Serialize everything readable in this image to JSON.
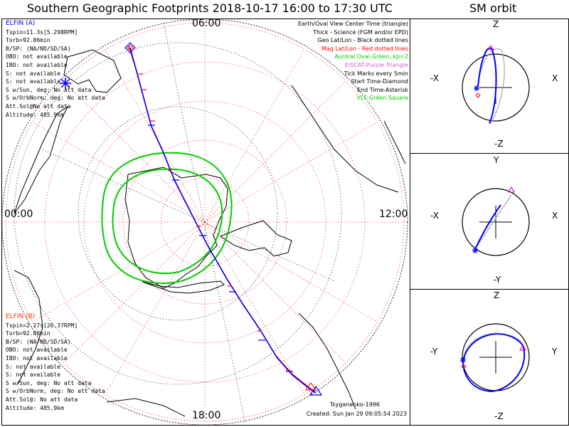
{
  "title": "Southern Geographic Footprints 2018-10-17 16:00 to 17:30 UTC",
  "side_title": "SM orbit",
  "clock_labels": {
    "top": "06:00",
    "left": "00:00",
    "right": "12:00",
    "bottom": "18:00"
  },
  "elfin_a": {
    "name": "ELFIN (A)",
    "color": "#0000ff",
    "lines": [
      "Tspin=11.3s[5.298RPM]",
      "Torb=92.86min",
      "B/SP: (NA/ND/SD/SA)",
      "OBO: not available",
      "IBO: not available",
      "S: not available",
      "S: not available",
      "S w/Sun, deg: No att data",
      "S w/OrbNorm, deg: No att data",
      "Att.Sol@No att data",
      "Altitude: 485.9km"
    ]
  },
  "elfin_b": {
    "name": "ELFIN (B)",
    "color": "#ff3300",
    "lines": [
      "Tspin=2.27s[26.37RPM]",
      "Torb=92.86min",
      "B/SP: (NA/ND/SD/SA)",
      "OBO: not available",
      "IBO: not available",
      "S: not available",
      "S: not available",
      "S w/Sun, deg: No att data",
      "S w/OrbNorm, deg: No att data",
      "Att.Sol@: No att data",
      "Altitude: 485.9km"
    ]
  },
  "legend": [
    {
      "text": "Earth/Oval View Center Time (triangle)",
      "color": "#000000"
    },
    {
      "text": "Thick - Science (FGM and/or EPD)",
      "color": "#000000"
    },
    {
      "text": "Geo Lat/Lon - Black dotted lines",
      "color": "#000000"
    },
    {
      "text": "Mag Lat/Lon - Red dotted lines",
      "color": "#ff0000"
    },
    {
      "text": "Auroral Oval-Green, kp=2",
      "color": "#00cc00"
    },
    {
      "text": "EISCAT-Purple Triangle",
      "color": "#cc66cc"
    },
    {
      "text": "Tick Marks every 5min",
      "color": "#000000"
    },
    {
      "text": "Start Time-Diamond",
      "color": "#000000"
    },
    {
      "text": "End Time-Asterisk",
      "color": "#000000"
    },
    {
      "text": "VLF-Green Square",
      "color": "#00cc00"
    }
  ],
  "model": "Tsyganenko-1996",
  "created": "Created: Sun Jan 29 09:05:54 2023",
  "panels": [
    {
      "top_label": "Z",
      "bottom_label": "-Z",
      "left_label": "-X",
      "right_label": "X"
    },
    {
      "top_label": "Y",
      "bottom_label": "-Y",
      "left_label": "-X",
      "right_label": "X"
    },
    {
      "top_label": "Z",
      "bottom_label": "-Z",
      "left_label": "-Y",
      "right_label": "Y"
    }
  ],
  "colors": {
    "track_a": "#0000ff",
    "track_b": "#ff0000",
    "oval": "#00cc00",
    "grid_mag": "#ff0000",
    "grid_geo": "#000000"
  }
}
